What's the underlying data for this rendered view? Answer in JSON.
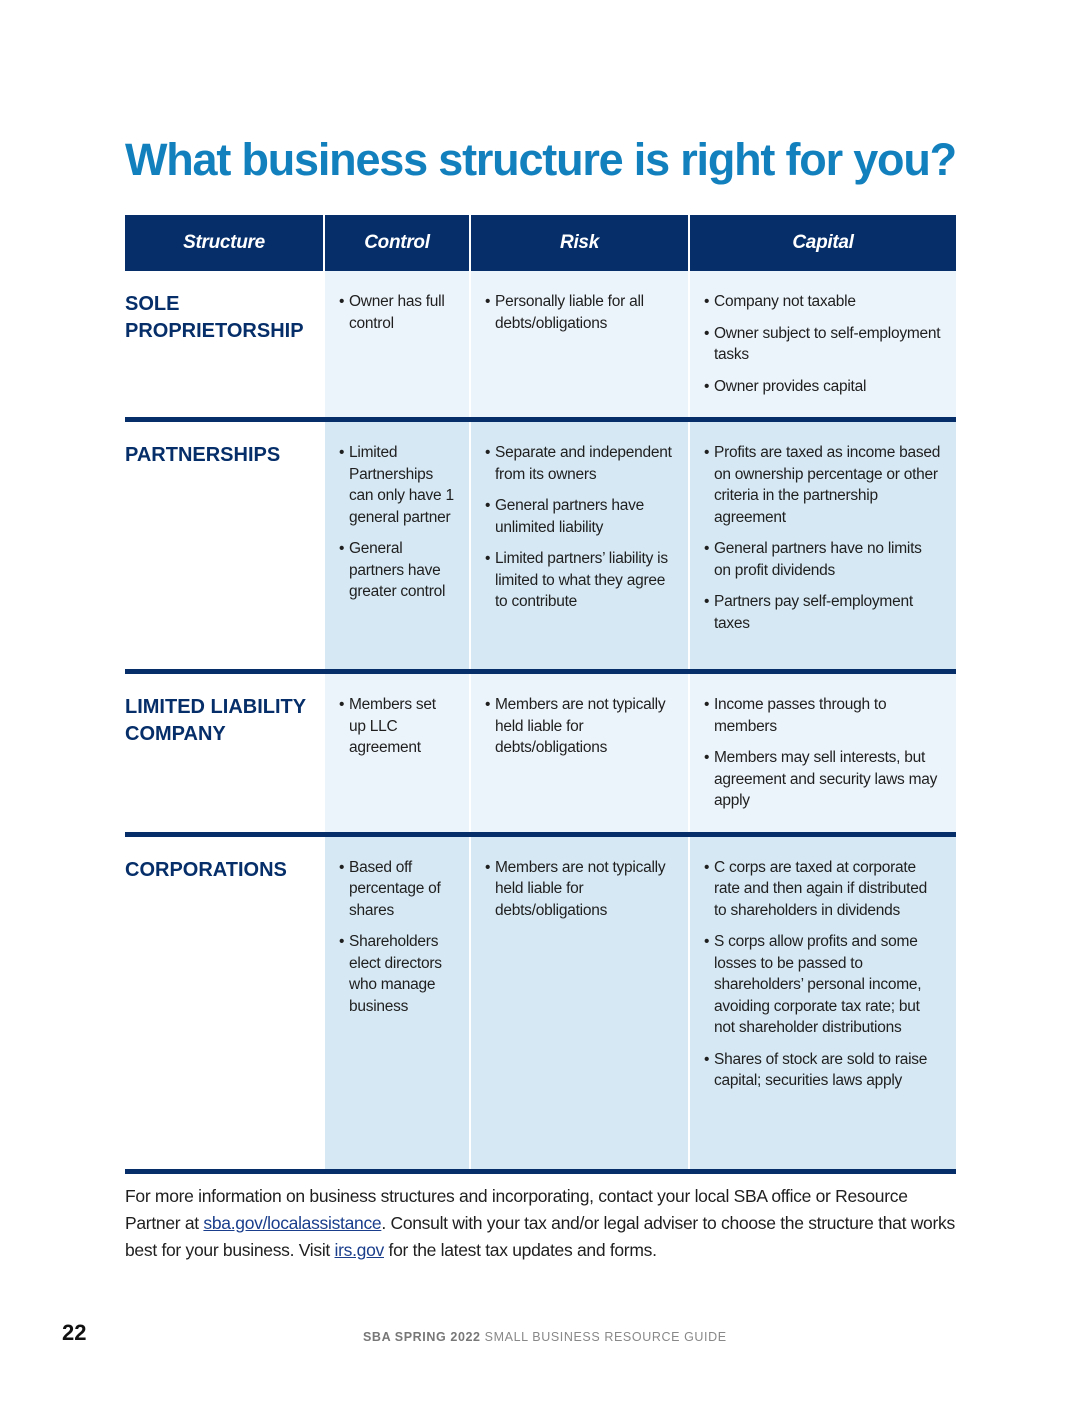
{
  "title": "What business structure is right for you?",
  "table": {
    "headers": [
      "Structure",
      "Control",
      "Risk",
      "Capital"
    ],
    "rows": [
      {
        "name": "SOLE PROPRIETORSHIP",
        "control": [
          "Owner has full control"
        ],
        "risk": [
          "Personally liable for all debts/obligations"
        ],
        "capital": [
          "Company not taxable",
          "Owner subject to self-employment tasks",
          "Owner provides capital"
        ]
      },
      {
        "name": "PARTNERSHIPS",
        "control": [
          "Limited Partnerships can only have 1 general partner",
          "General partners have greater control"
        ],
        "risk": [
          "Separate and independent from its owners",
          "General partners have unlimited liability",
          "Limited partners’ liability is limited to what they agree to contribute"
        ],
        "capital": [
          "Profits are taxed as income based on ownership percentage or other criteria in the partnership agreement",
          "General partners have no limits on profit dividends",
          "Partners pay self-employment taxes"
        ]
      },
      {
        "name": "LIMITED LIABILITY COMPANY",
        "control": [
          "Members set up LLC agreement"
        ],
        "risk": [
          "Members are not typically held liable for debts/obligations"
        ],
        "capital": [
          "Income passes through to members",
          "Members may sell interests, but agreement and security laws may apply"
        ]
      },
      {
        "name": "CORPORATIONS",
        "control": [
          "Based off percentage of shares",
          "Shareholders elect directors who manage business"
        ],
        "risk": [
          "Members are not typically held liable for debts/obligations"
        ],
        "capital": [
          "C corps are taxed at corporate rate and then again if distributed to shareholders in dividends",
          "S corps allow profits and some losses to be passed to shareholders’ personal income, avoiding corporate tax rate; but not shareholder distributions",
          "Shares of stock are sold to raise capital; securities laws apply"
        ]
      }
    ]
  },
  "footer": {
    "text1": "For more information on business structures and incorporating, contact your local SBA office or Resource Partner at ",
    "link1": "sba.gov/localassistance",
    "text2": ". Consult with your tax and/or legal adviser to choose the structure that works best for your business. Visit ",
    "link2": "irs.gov",
    "text3": " for the latest tax updates and forms."
  },
  "page_number": "22",
  "guide_bold": "SBA SPRING 2022",
  "guide_rest": " SMALL BUSINESS RESOURCE GUIDE",
  "colors": {
    "title": "#1380be",
    "navy": "#062f6a",
    "light_row": "#ecf4fb",
    "dark_row": "#d6e8f3"
  }
}
